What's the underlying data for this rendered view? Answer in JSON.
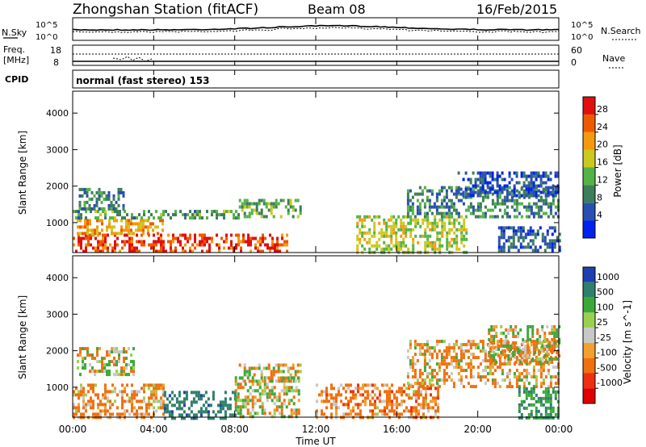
{
  "header": {
    "station": "Zhongshan Station (fitACF)",
    "beam": "Beam 08",
    "date": "16/Feb/2015"
  },
  "noise_panel": {
    "left_label": "N.Sky",
    "left_ticks": [
      "10^5",
      "10^0"
    ],
    "right_label": "N.Search",
    "right_ticks": [
      "10^5",
      "10^0"
    ]
  },
  "freq_panel": {
    "left_label_line1": "Freq.",
    "left_label_line2": "[MHz]",
    "left_ticks": [
      "18",
      "8"
    ],
    "right_label": "Nave",
    "right_ticks": [
      "60",
      "0"
    ]
  },
  "cpid": {
    "label": "CPID",
    "text": "normal (fast stereo) 153"
  },
  "axes": {
    "y_label": "Slant Range [km]",
    "y_ticks": [
      1000,
      2000,
      3000,
      4000
    ],
    "y_range": [
      180,
      4600
    ],
    "x_label": "Time UT",
    "x_ticks": [
      "00:00",
      "04:00",
      "08:00",
      "12:00",
      "16:00",
      "20:00",
      "00:00"
    ],
    "x_range_hours": [
      0,
      24
    ]
  },
  "power_colorbar": {
    "label": "Power [dB]",
    "ticks": [
      4,
      8,
      12,
      16,
      20,
      24,
      28
    ],
    "range": [
      0,
      32
    ],
    "colors": [
      "#0022ee",
      "#2a4fb0",
      "#3d7d5a",
      "#55b248",
      "#ccc820",
      "#f49a10",
      "#ef5a00",
      "#e01010"
    ]
  },
  "velocity_colorbar": {
    "label": "Velocity [m s^-1]",
    "ticks": [
      "1000",
      "500",
      "100",
      "25",
      "-25",
      "-100",
      "-500",
      "-1000"
    ],
    "colors": [
      "#1f3fb0",
      "#2f7f6a",
      "#3da83a",
      "#9ad050",
      "#c8c8c8",
      "#f2a030",
      "#f07010",
      "#ee3010",
      "#e00000"
    ]
  },
  "chart_data": {
    "type": "heatmap",
    "title": "Zhongshan Station (fitACF) Beam 08",
    "xlabel": "Time UT",
    "ylabel": "Slant Range [km]",
    "xlim_hours": [
      0,
      24
    ],
    "ylim_km": [
      180,
      4600
    ],
    "panels": [
      {
        "name": "Power",
        "unit": "dB",
        "echo_regions": [
          {
            "t": [
              0.0,
              10.6
            ],
            "range_km": [
              180,
              700
            ],
            "value": 27
          },
          {
            "t": [
              0.2,
              4.5
            ],
            "range_km": [
              700,
              1100
            ],
            "value": 22
          },
          {
            "t": [
              0.0,
              8.2
            ],
            "range_km": [
              1100,
              1350
            ],
            "value": 12
          },
          {
            "t": [
              0.3,
              2.5
            ],
            "range_km": [
              1350,
              1950
            ],
            "value": 9
          },
          {
            "t": [
              8.2,
              11.2
            ],
            "range_km": [
              1150,
              1650
            ],
            "value": 13
          },
          {
            "t": [
              14.0,
              19.5
            ],
            "range_km": [
              200,
              1200
            ],
            "value": 17
          },
          {
            "t": [
              16.5,
              24.0
            ],
            "range_km": [
              1200,
              2000
            ],
            "value": 10
          },
          {
            "t": [
              19.0,
              24.0
            ],
            "range_km": [
              1700,
              2400
            ],
            "value": 6
          },
          {
            "t": [
              21.0,
              24.0
            ],
            "range_km": [
              250,
              900
            ],
            "value": 7
          }
        ]
      },
      {
        "name": "Velocity",
        "unit": "m s^-1",
        "echo_regions": [
          {
            "t": [
              0.0,
              4.5
            ],
            "range_km": [
              180,
              1100
            ],
            "value": -120
          },
          {
            "t": [
              4.5,
              8.0
            ],
            "range_km": [
              180,
              900
            ],
            "value": 600
          },
          {
            "t": [
              8.0,
              11.2
            ],
            "range_km": [
              180,
              1300
            ],
            "value": 20
          },
          {
            "t": [
              0.2,
              3.0
            ],
            "range_km": [
              1350,
              2100
            ],
            "value": 0
          },
          {
            "t": [
              8.2,
              11.2
            ],
            "range_km": [
              1200,
              1650
            ],
            "value": 0
          },
          {
            "t": [
              12.0,
              18.0
            ],
            "range_km": [
              180,
              1100
            ],
            "value": -150
          },
          {
            "t": [
              16.5,
              24.0
            ],
            "range_km": [
              1000,
              2300
            ],
            "value": -80
          },
          {
            "t": [
              20.5,
              24.0
            ],
            "range_km": [
              1700,
              2700
            ],
            "value": 0
          },
          {
            "t": [
              22.0,
              24.0
            ],
            "range_km": [
              200,
              1000
            ],
            "value": 300
          }
        ]
      }
    ]
  }
}
